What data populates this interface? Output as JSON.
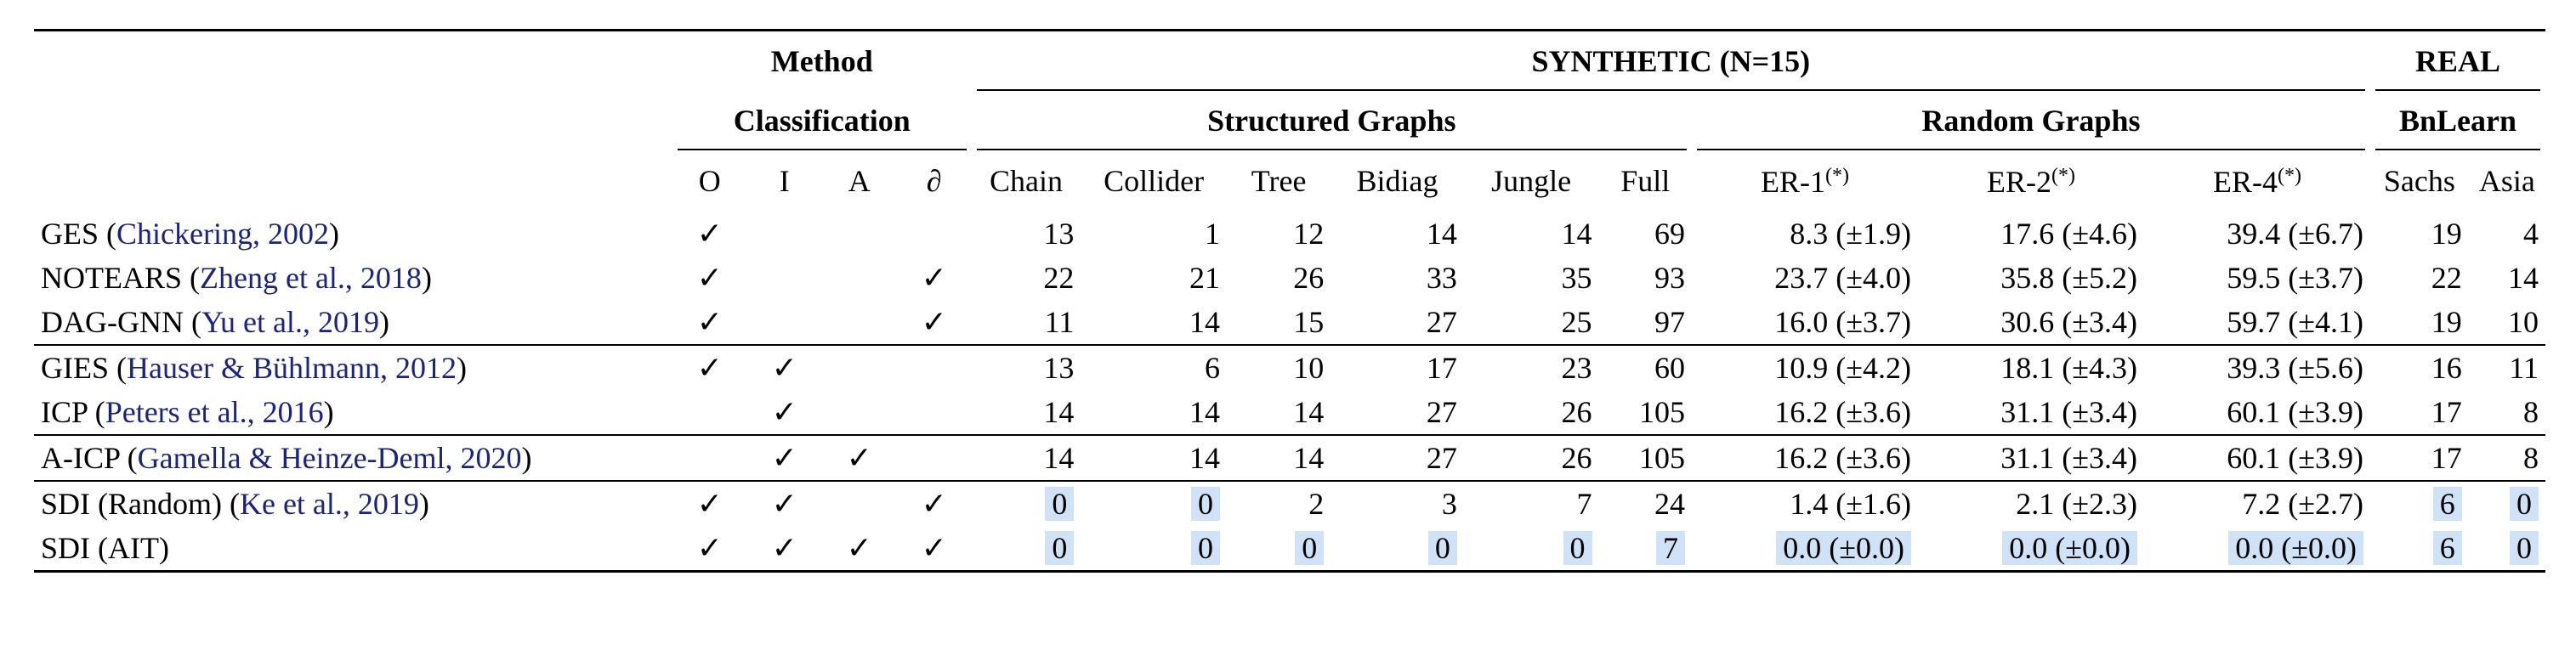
{
  "headers": {
    "method_line1": "Method",
    "method_line2": "Classification",
    "synthetic": "SYNTHETIC (N=15)",
    "real": "REAL",
    "structured": "Structured Graphs",
    "random": "Random Graphs",
    "bnlearn": "BnLearn",
    "cls": [
      "O",
      "I",
      "A",
      "∂"
    ],
    "cols": [
      "Chain",
      "Collider",
      "Tree",
      "Bidiag",
      "Jungle",
      "Full"
    ],
    "er": [
      {
        "label": "ER-1",
        "sup": "(*)"
      },
      {
        "label": "ER-2",
        "sup": "(*)"
      },
      {
        "label": "ER-4",
        "sup": "(*)"
      }
    ],
    "real_cols": [
      "Sachs",
      "Asia"
    ]
  },
  "rows": [
    {
      "name": "GES (",
      "cite": "Chickering, 2002",
      "close": ")",
      "cls": [
        "✓",
        "",
        "",
        ""
      ],
      "vals": [
        "13",
        "1",
        "12",
        "14",
        "14",
        "69"
      ],
      "er": [
        "8.3 (±1.9)",
        "17.6 (±4.6)",
        "39.4 (±6.7)"
      ],
      "real": [
        "19",
        "4"
      ]
    },
    {
      "name": "NOTEARS (",
      "cite": "Zheng et al., 2018",
      "close": ")",
      "cls": [
        "✓",
        "",
        "",
        "✓"
      ],
      "vals": [
        "22",
        "21",
        "26",
        "33",
        "35",
        "93"
      ],
      "er": [
        "23.7 (±4.0)",
        "35.8 (±5.2)",
        "59.5 (±3.7)"
      ],
      "real": [
        "22",
        "14"
      ]
    },
    {
      "name": "DAG-GNN (",
      "cite": "Yu et al., 2019",
      "close": ")",
      "cls": [
        "✓",
        "",
        "",
        "✓"
      ],
      "vals": [
        "11",
        "14",
        "15",
        "27",
        "25",
        "97"
      ],
      "er": [
        "16.0 (±3.7)",
        "30.6 (±3.4)",
        "59.7 (±4.1)"
      ],
      "real": [
        "19",
        "10"
      ]
    },
    {
      "name": "GIES (",
      "cite": "Hauser & Bühlmann, 2012",
      "close": ")",
      "cls": [
        "✓",
        "✓",
        "",
        ""
      ],
      "vals": [
        "13",
        "6",
        "10",
        "17",
        "23",
        "60"
      ],
      "er": [
        "10.9 (±4.2)",
        "18.1 (±4.3)",
        "39.3 (±5.6)"
      ],
      "real": [
        "16",
        "11"
      ]
    },
    {
      "name": "ICP (",
      "cite": "Peters et al., 2016",
      "close": ")",
      "cls": [
        "",
        "✓",
        "",
        ""
      ],
      "vals": [
        "14",
        "14",
        "14",
        "27",
        "26",
        "105"
      ],
      "er": [
        "16.2 (±3.6)",
        "31.1 (±3.4)",
        "60.1 (±3.9)"
      ],
      "real": [
        "17",
        "8"
      ]
    },
    {
      "name": "A-ICP (",
      "cite": "Gamella & Heinze-Deml, 2020",
      "close": ")",
      "cls": [
        "",
        "✓",
        "✓",
        ""
      ],
      "vals": [
        "14",
        "14",
        "14",
        "27",
        "26",
        "105"
      ],
      "er": [
        "16.2 (±3.6)",
        "31.1 (±3.4)",
        "60.1 (±3.9)"
      ],
      "real": [
        "17",
        "8"
      ]
    },
    {
      "name": "SDI (Random) (",
      "cite": "Ke et al., 2019",
      "close": ")",
      "cls": [
        "✓",
        "✓",
        "",
        "✓"
      ],
      "vals": [
        "0",
        "0",
        "2",
        "3",
        "7",
        "24"
      ],
      "er": [
        "1.4 (±1.6)",
        "2.1 (±2.3)",
        "7.2 (±2.7)"
      ],
      "real": [
        "6",
        "0"
      ]
    },
    {
      "name": "SDI (AIT)",
      "cite": "",
      "close": "",
      "cls": [
        "✓",
        "✓",
        "✓",
        "✓"
      ],
      "vals": [
        "0",
        "0",
        "0",
        "0",
        "0",
        "7"
      ],
      "er": [
        "0.0 (±0.0)",
        "0.0 (±0.0)",
        "0.0 (±0.0)"
      ],
      "real": [
        "6",
        "0"
      ]
    }
  ],
  "highlight_color": "#cfe2f7",
  "cite_color": "#1a237e"
}
